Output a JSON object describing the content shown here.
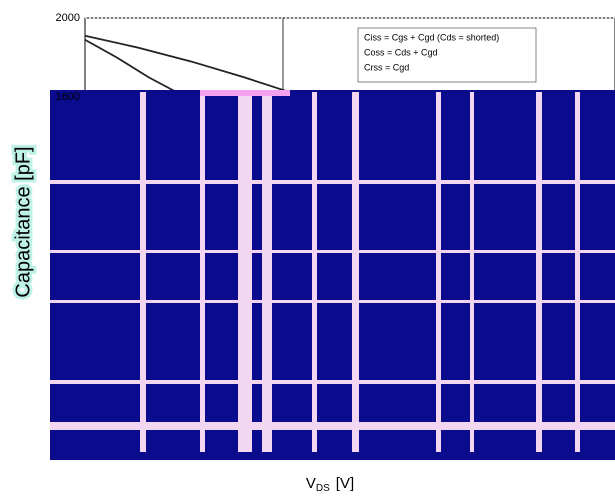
{
  "chart_data": {
    "type": "line",
    "y_label": "Capacitance [pF]",
    "x_label": {
      "main": "V",
      "sub": "DS",
      "unit": "[V]"
    },
    "xlim": [
      0,
      50
    ],
    "ylim": [
      0,
      2000
    ],
    "yticks": [
      1600,
      2000
    ],
    "grid": true,
    "series": [
      {
        "name": "Ciss = Cgs + Cgd (Cds = shorted)",
        "color": "#222222",
        "x": [
          0,
          5,
          10,
          15,
          19
        ],
        "values": [
          1910,
          1850,
          1780,
          1700,
          1630
        ]
      },
      {
        "name": "Coss = Cds + Cgd",
        "color": "#222222",
        "x": [
          0,
          3,
          6,
          9.5
        ],
        "values": [
          1890,
          1800,
          1700,
          1600
        ]
      },
      {
        "name": "Crss = Cgd",
        "color": "#222222",
        "x": [],
        "values": []
      }
    ]
  }
}
